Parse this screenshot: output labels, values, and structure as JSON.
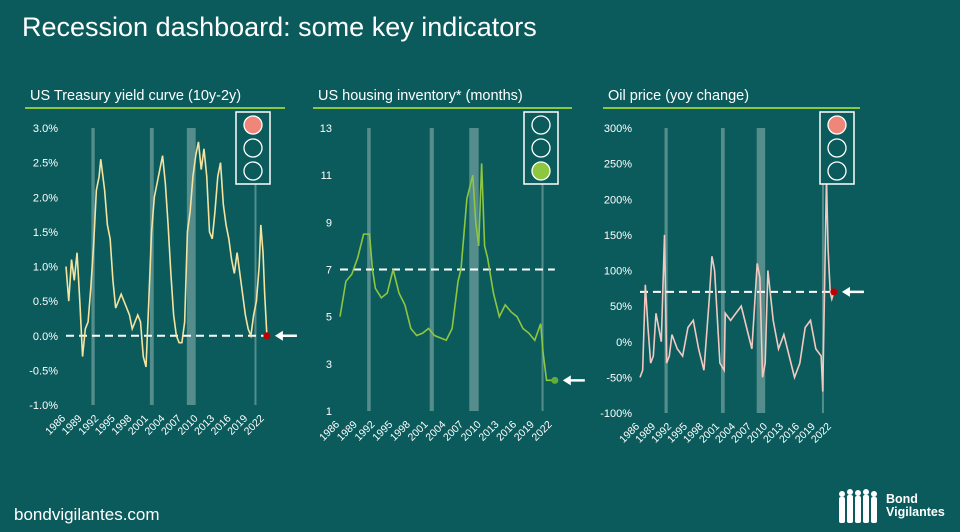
{
  "title": "Recession dashboard: some key indicators",
  "footer": "bondvigilantes.com",
  "logo": {
    "line1": "Bond",
    "line2": "Vigilantes"
  },
  "colors": {
    "bg": "#0b5b5d",
    "recession": "#6f9c9c",
    "red": "#f0857a",
    "green": "#8dc63f",
    "dot_red": "#c00000",
    "dot_green": "#5fae3a"
  },
  "recessions": [
    [
      1990.6,
      1991.2
    ],
    [
      2001.2,
      2001.9
    ],
    [
      2007.9,
      2009.5
    ],
    [
      2020.15,
      2020.4
    ]
  ],
  "chart_data": [
    {
      "type": "line",
      "title": "US Treasury yield curve (10y-2y)",
      "ylim": [
        -1,
        3
      ],
      "yticks": [
        -1,
        -0.5,
        0,
        0.5,
        1,
        1.5,
        2,
        2.5,
        3
      ],
      "ytick_labels": [
        "-1.0%",
        "-0.5%",
        "0.0%",
        "0.5%",
        "1.0%",
        "1.5%",
        "2.0%",
        "2.5%",
        "3.0%"
      ],
      "xticks": [
        "1986",
        "1989",
        "1992",
        "1995",
        "1998",
        "2001",
        "2004",
        "2007",
        "2010",
        "2013",
        "2016",
        "2019",
        "2022"
      ],
      "threshold": 0,
      "current": 0,
      "light": "red",
      "line_color": "#f5e3a0",
      "x": [
        1986,
        1986.5,
        1987,
        1987.5,
        1988,
        1988.5,
        1989,
        1989.5,
        1990,
        1990.5,
        1991,
        1991.5,
        1992,
        1992.3,
        1993,
        1993.5,
        1994,
        1994.5,
        1995,
        1995.5,
        1996,
        1996.5,
        1997,
        1997.5,
        1998,
        1998.5,
        1999,
        1999.5,
        2000,
        2000.5,
        2001,
        2001.5,
        2002,
        2002.5,
        2003,
        2003.5,
        2004,
        2004.5,
        2005,
        2005.5,
        2006,
        2006.5,
        2007,
        2007.5,
        2008,
        2008.5,
        2009,
        2009.5,
        2010,
        2010.5,
        2011,
        2011.5,
        2012,
        2012.5,
        2013,
        2013.5,
        2014,
        2014.5,
        2015,
        2015.5,
        2016,
        2016.5,
        2017,
        2017.5,
        2018,
        2018.5,
        2019,
        2019.5,
        2020,
        2020.5,
        2021,
        2021.3,
        2021.7,
        2022,
        2022.4
      ],
      "y": [
        1.0,
        0.5,
        1.1,
        0.8,
        1.2,
        0.5,
        -0.3,
        0.1,
        0.2,
        0.7,
        1.3,
        2.1,
        2.3,
        2.55,
        2.1,
        1.6,
        1.4,
        0.8,
        0.4,
        0.5,
        0.6,
        0.5,
        0.4,
        0.3,
        0.1,
        0.2,
        0.3,
        0.2,
        -0.3,
        -0.45,
        0.5,
        1.5,
        2.0,
        2.2,
        2.4,
        2.6,
        2.2,
        1.6,
        0.9,
        0.3,
        0.0,
        -0.1,
        -0.1,
        0.2,
        1.5,
        1.8,
        2.3,
        2.6,
        2.8,
        2.4,
        2.7,
        2.3,
        1.5,
        1.4,
        1.8,
        2.3,
        2.5,
        1.9,
        1.6,
        1.4,
        1.1,
        0.9,
        1.2,
        0.9,
        0.6,
        0.3,
        0.1,
        0.0,
        0.3,
        0.5,
        1.0,
        1.6,
        1.2,
        0.6,
        0.0
      ]
    },
    {
      "type": "line",
      "title": "US housing inventory* (months)",
      "ylim": [
        1,
        13
      ],
      "yticks": [
        1,
        3,
        5,
        7,
        9,
        11,
        13
      ],
      "ytick_labels": [
        "1",
        "3",
        "5",
        "7",
        "9",
        "11",
        "13"
      ],
      "xticks": [
        "1986",
        "1989",
        "1992",
        "1995",
        "1998",
        "2001",
        "2004",
        "2007",
        "2010",
        "2013",
        "2016",
        "2019",
        "2022"
      ],
      "threshold": 7,
      "current": 2.3,
      "light": "green",
      "line_color": "#8dc63f",
      "x": [
        1986,
        1987,
        1988,
        1989,
        1990,
        1991,
        1991.5,
        1992,
        1993,
        1994,
        1995,
        1996,
        1997,
        1998,
        1999,
        2000,
        2001,
        2002,
        2003,
        2004,
        2005,
        2006,
        2006.5,
        2007,
        2007.5,
        2008,
        2008.5,
        2009,
        2009.5,
        2010,
        2010.5,
        2011,
        2012,
        2013,
        2014,
        2015,
        2016,
        2017,
        2018,
        2019,
        2020,
        2020.4,
        2021,
        2022
      ],
      "y": [
        5,
        6.5,
        6.8,
        7.5,
        8.5,
        8.5,
        7,
        6.2,
        5.8,
        6.0,
        7.0,
        6.0,
        5.5,
        4.5,
        4.2,
        4.3,
        4.5,
        4.2,
        4.1,
        4.0,
        4.5,
        6.5,
        7,
        8.5,
        10,
        10.5,
        11,
        9,
        8,
        11.5,
        8,
        7.5,
        6,
        5,
        5.5,
        5.2,
        5.0,
        4.5,
        4.3,
        4.0,
        4.7,
        3.5,
        2.3,
        2.3
      ]
    },
    {
      "type": "line",
      "title": "Oil price (yoy change)",
      "ylim": [
        -100,
        300
      ],
      "yticks": [
        -100,
        -50,
        0,
        50,
        100,
        150,
        200,
        250,
        300
      ],
      "ytick_labels": [
        "-100%",
        "-50%",
        "0%",
        "50%",
        "100%",
        "150%",
        "200%",
        "250%",
        "300%"
      ],
      "xticks": [
        "1986",
        "1989",
        "1992",
        "1995",
        "1998",
        "2001",
        "2004",
        "2007",
        "2010",
        "2013",
        "2016",
        "2019",
        "2022"
      ],
      "threshold": 70,
      "current": 70,
      "light": "red",
      "line_color": "#f2c9c0",
      "x": [
        1986,
        1986.5,
        1987,
        1987.5,
        1988,
        1988.5,
        1989,
        1990,
        1990.6,
        1991,
        1991.5,
        1992,
        1993,
        1994,
        1995,
        1996,
        1997,
        1998,
        1999,
        1999.5,
        2000,
        2001,
        2001.8,
        2002,
        2003,
        2004,
        2005,
        2006,
        2007,
        2008,
        2008.5,
        2009,
        2009.5,
        2010,
        2011,
        2012,
        2013,
        2014,
        2015,
        2016,
        2017,
        2018,
        2019,
        2020,
        2020.3,
        2021,
        2021.3,
        2021.7,
        2022,
        2022.4
      ],
      "y": [
        -50,
        -40,
        80,
        20,
        -30,
        -20,
        40,
        0,
        150,
        -30,
        -20,
        10,
        -10,
        -20,
        20,
        30,
        -10,
        -40,
        60,
        120,
        100,
        -30,
        -40,
        40,
        30,
        40,
        50,
        20,
        -10,
        110,
        90,
        -50,
        -30,
        100,
        30,
        -10,
        10,
        -20,
        -50,
        -30,
        20,
        30,
        -10,
        -20,
        -70,
        230,
        130,
        70,
        60,
        70
      ]
    }
  ]
}
